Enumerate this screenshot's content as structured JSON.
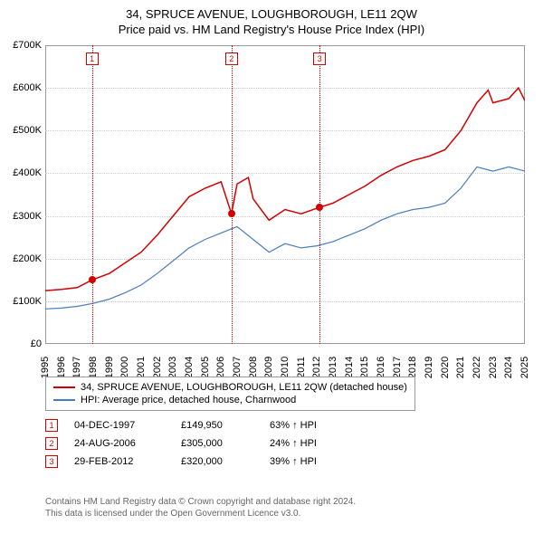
{
  "title": {
    "main": "34, SPRUCE AVENUE, LOUGHBOROUGH, LE11 2QW",
    "sub": "Price paid vs. HM Land Registry's House Price Index (HPI)",
    "fontsize": 13
  },
  "chart": {
    "type": "line",
    "plot_bg": "#ffffff",
    "border_color": "#999999",
    "grid_color": "#cccccc",
    "x": {
      "min": 1995,
      "max": 2025,
      "ticks": [
        1995,
        1996,
        1997,
        1998,
        1999,
        2000,
        2001,
        2002,
        2003,
        2004,
        2005,
        2006,
        2007,
        2008,
        2009,
        2010,
        2011,
        2012,
        2013,
        2014,
        2015,
        2016,
        2017,
        2018,
        2019,
        2020,
        2021,
        2022,
        2023,
        2024,
        2025
      ]
    },
    "y": {
      "min": 0,
      "max": 700000,
      "ticks": [
        0,
        100000,
        200000,
        300000,
        400000,
        500000,
        600000,
        700000
      ],
      "labels": [
        "£0",
        "£100K",
        "£200K",
        "£300K",
        "£400K",
        "£500K",
        "£600K",
        "£700K"
      ]
    },
    "axis_fontsize": 11,
    "series": [
      {
        "name": "34, SPRUCE AVENUE, LOUGHBOROUGH, LE11 2QW (detached house)",
        "color": "#d40000",
        "width": 1.5,
        "points": [
          [
            1995,
            125000
          ],
          [
            1996,
            128000
          ],
          [
            1997,
            132000
          ],
          [
            1997.92,
            149950
          ],
          [
            1999,
            165000
          ],
          [
            2000,
            190000
          ],
          [
            2001,
            215000
          ],
          [
            2002,
            255000
          ],
          [
            2003,
            300000
          ],
          [
            2004,
            345000
          ],
          [
            2005,
            365000
          ],
          [
            2006,
            380000
          ],
          [
            2006.65,
            305000
          ],
          [
            2007,
            375000
          ],
          [
            2007.7,
            390000
          ],
          [
            2008,
            340000
          ],
          [
            2009,
            290000
          ],
          [
            2010,
            315000
          ],
          [
            2011,
            305000
          ],
          [
            2012.16,
            320000
          ],
          [
            2013,
            330000
          ],
          [
            2014,
            350000
          ],
          [
            2015,
            370000
          ],
          [
            2016,
            395000
          ],
          [
            2017,
            415000
          ],
          [
            2018,
            430000
          ],
          [
            2019,
            440000
          ],
          [
            2020,
            455000
          ],
          [
            2021,
            500000
          ],
          [
            2022,
            565000
          ],
          [
            2022.7,
            595000
          ],
          [
            2023,
            565000
          ],
          [
            2024,
            575000
          ],
          [
            2024.6,
            600000
          ],
          [
            2025,
            570000
          ]
        ]
      },
      {
        "name": "HPI: Average price, detached house, Charnwood",
        "color": "#4a7ebb",
        "width": 1.2,
        "points": [
          [
            1995,
            82000
          ],
          [
            1996,
            84000
          ],
          [
            1997,
            88000
          ],
          [
            1998,
            95000
          ],
          [
            1999,
            105000
          ],
          [
            2000,
            120000
          ],
          [
            2001,
            138000
          ],
          [
            2002,
            165000
          ],
          [
            2003,
            195000
          ],
          [
            2004,
            225000
          ],
          [
            2005,
            245000
          ],
          [
            2006,
            260000
          ],
          [
            2007,
            275000
          ],
          [
            2008,
            245000
          ],
          [
            2009,
            215000
          ],
          [
            2010,
            235000
          ],
          [
            2011,
            225000
          ],
          [
            2012,
            230000
          ],
          [
            2013,
            240000
          ],
          [
            2014,
            255000
          ],
          [
            2015,
            270000
          ],
          [
            2016,
            290000
          ],
          [
            2017,
            305000
          ],
          [
            2018,
            315000
          ],
          [
            2019,
            320000
          ],
          [
            2020,
            330000
          ],
          [
            2021,
            365000
          ],
          [
            2022,
            415000
          ],
          [
            2023,
            405000
          ],
          [
            2024,
            415000
          ],
          [
            2025,
            405000
          ]
        ]
      }
    ],
    "sale_events": [
      {
        "n": "1",
        "date": "04-DEC-1997",
        "x": 1997.92,
        "price_val": 149950,
        "price": "£149,950",
        "diff": "63% ↑ HPI",
        "color": "#d40000"
      },
      {
        "n": "2",
        "date": "24-AUG-2006",
        "x": 2006.65,
        "price_val": 305000,
        "price": "£305,000",
        "diff": "24% ↑ HPI",
        "color": "#d40000"
      },
      {
        "n": "3",
        "date": "29-FEB-2012",
        "x": 2012.16,
        "price_val": 320000,
        "price": "£320,000",
        "diff": "39% ↑ HPI",
        "color": "#d40000"
      }
    ]
  },
  "footer": {
    "line1": "Contains HM Land Registry data © Crown copyright and database right 2024.",
    "line2": "This data is licensed under the Open Government Licence v3.0."
  }
}
